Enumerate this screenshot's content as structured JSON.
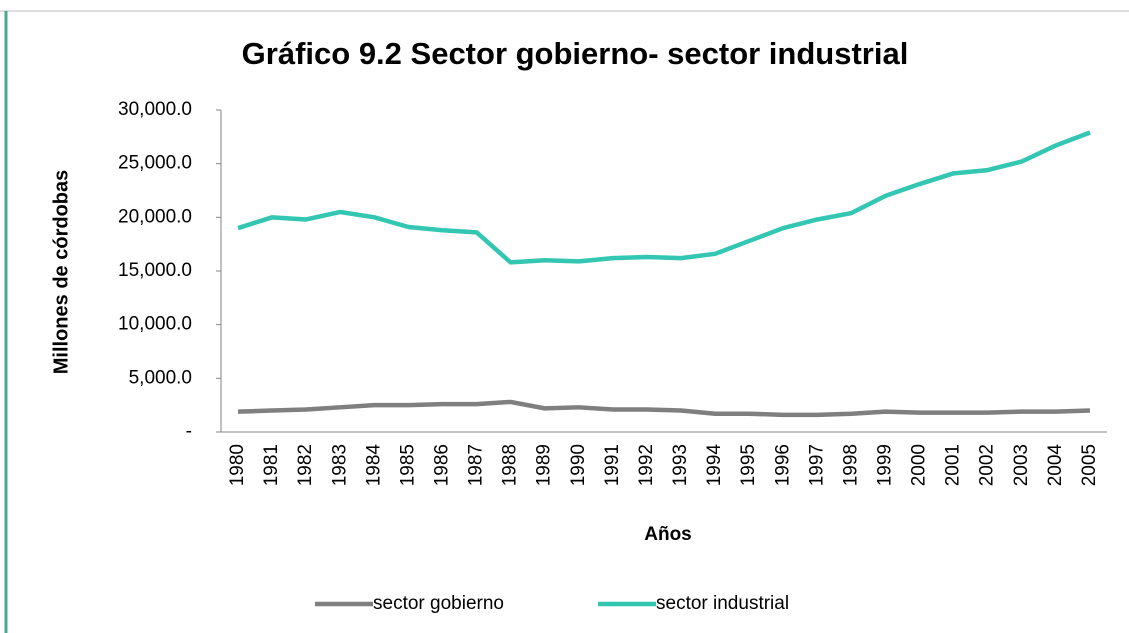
{
  "chart_data": {
    "type": "line",
    "title": "Gráfico 9.2 Sector gobierno- sector industrial",
    "x_label": "Años",
    "y_label": "Millones de córdobas",
    "categories": [
      "1980",
      "1981",
      "1982",
      "1983",
      "1984",
      "1985",
      "1986",
      "1987",
      "1988",
      "1989",
      "1990",
      "1991",
      "1992",
      "1993",
      "1994",
      "1995",
      "1996",
      "1997",
      "1998",
      "1999",
      "2000",
      "2001",
      "2002",
      "2003",
      "2004",
      "2005"
    ],
    "series": [
      {
        "name": "sector gobierno",
        "color": "#7f7f7f",
        "values": [
          1900,
          2000,
          2100,
          2300,
          2500,
          2500,
          2600,
          2600,
          2800,
          2200,
          2300,
          2100,
          2100,
          2000,
          1700,
          1700,
          1600,
          1600,
          1700,
          1900,
          1800,
          1800,
          1800,
          1900,
          1900,
          2000
        ]
      },
      {
        "name": "sector industrial",
        "color": "#33c6b3",
        "values": [
          19000,
          20000,
          19800,
          20500,
          20000,
          19100,
          18800,
          18600,
          15800,
          16000,
          15900,
          16200,
          16300,
          16200,
          16600,
          17800,
          19000,
          19800,
          20400,
          22000,
          23100,
          24100,
          24400,
          25200,
          26700,
          27900
        ]
      }
    ],
    "ylim": [
      0,
      30000
    ],
    "yticks": [
      {
        "value": 0,
        "label": "-"
      },
      {
        "value": 5000,
        "label": "5,000.0"
      },
      {
        "value": 10000,
        "label": "10,000.0"
      },
      {
        "value": 15000,
        "label": "15,000.0"
      },
      {
        "value": 20000,
        "label": "20,000.0"
      },
      {
        "value": 25000,
        "label": "25,000.0"
      },
      {
        "value": 30000,
        "label": "30,000.0"
      }
    ],
    "grid": false,
    "legend": "bottom"
  }
}
